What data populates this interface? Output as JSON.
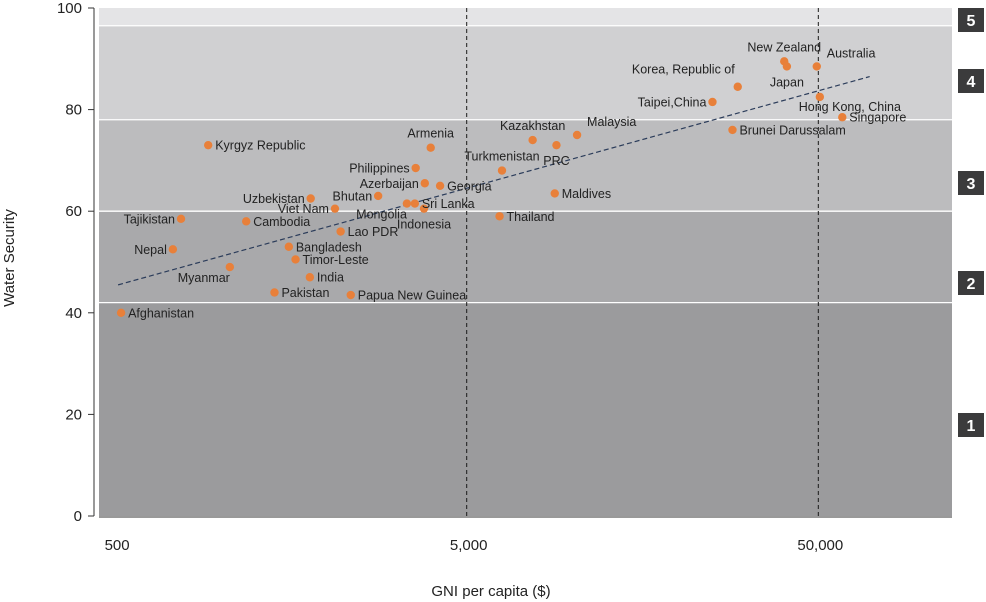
{
  "chart_data": {
    "type": "scatter",
    "title": "",
    "xlabel": "GNI per capita ($)",
    "ylabel": "Water Security",
    "x_scale": "log",
    "xlim": [
      450,
      120000
    ],
    "ylim": [
      0,
      100
    ],
    "x_ticks": [
      {
        "value": 500,
        "label": "500"
      },
      {
        "value": 5000,
        "label": "5,000"
      },
      {
        "value": 50000,
        "label": "50,000"
      }
    ],
    "y_ticks": [
      {
        "value": 0,
        "label": "0"
      },
      {
        "value": 20,
        "label": "20"
      },
      {
        "value": 40,
        "label": "40"
      },
      {
        "value": 60,
        "label": "60"
      },
      {
        "value": 80,
        "label": "80"
      },
      {
        "value": 100,
        "label": "100"
      }
    ],
    "vlines": [
      5000,
      50000
    ],
    "bands": [
      {
        "label": "1",
        "from": 0,
        "to": 42,
        "color": "#9b9b9d"
      },
      {
        "label": "2",
        "from": 42,
        "to": 60,
        "color": "#a9a9ab"
      },
      {
        "label": "3",
        "from": 60,
        "to": 78,
        "color": "#bcbcbe"
      },
      {
        "label": "4",
        "from": 78,
        "to": 96.5,
        "color": "#d0d0d2"
      },
      {
        "label": "5",
        "from": 96.5,
        "to": 100,
        "color": "#e4e4e6"
      }
    ],
    "band_marker_color": "#3b3b3c",
    "point_color": "#e8803a",
    "trend_line": {
      "x": [
        510,
        70000
      ],
      "y": [
        45.5,
        86.5
      ]
    },
    "points": [
      {
        "label": "Afghanistan",
        "x": 520,
        "y": 40,
        "anchor": "right"
      },
      {
        "label": "Nepal",
        "x": 730,
        "y": 52.5,
        "anchor": "left"
      },
      {
        "label": "Tajikistan",
        "x": 770,
        "y": 58.5,
        "anchor": "left"
      },
      {
        "label": "Kyrgyz Republic",
        "x": 920,
        "y": 73,
        "anchor": "right"
      },
      {
        "label": "Myanmar",
        "x": 1060,
        "y": 49,
        "anchor": "below-left"
      },
      {
        "label": "Cambodia",
        "x": 1180,
        "y": 58,
        "anchor": "right"
      },
      {
        "label": "Pakistan",
        "x": 1420,
        "y": 44,
        "anchor": "right"
      },
      {
        "label": "Bangladesh",
        "x": 1560,
        "y": 53,
        "anchor": "right"
      },
      {
        "label": "Timor-Leste",
        "x": 1630,
        "y": 50.5,
        "anchor": "right"
      },
      {
        "label": "India",
        "x": 1790,
        "y": 47,
        "anchor": "right"
      },
      {
        "label": "Uzbekistan",
        "x": 1800,
        "y": 62.5,
        "anchor": "left"
      },
      {
        "label": "Viet Nam",
        "x": 2110,
        "y": 60.5,
        "anchor": "left"
      },
      {
        "label": "Lao PDR",
        "x": 2190,
        "y": 56,
        "anchor": "right"
      },
      {
        "label": "Papua New Guinea",
        "x": 2340,
        "y": 43.5,
        "anchor": "right"
      },
      {
        "label": "Bhutan",
        "x": 2800,
        "y": 63,
        "anchor": "left"
      },
      {
        "label": "Mongolia",
        "x": 3380,
        "y": 61.5,
        "anchor": "below-left"
      },
      {
        "label": "Sri Lanka",
        "x": 3560,
        "y": 61.5,
        "anchor": "right"
      },
      {
        "label": "Philippines",
        "x": 3580,
        "y": 68.5,
        "anchor": "left"
      },
      {
        "label": "Indonesia",
        "x": 3780,
        "y": 60.5,
        "anchor": "below"
      },
      {
        "label": "Azerbaijan",
        "x": 3800,
        "y": 65.5,
        "anchor": "left"
      },
      {
        "label": "Armenia",
        "x": 3950,
        "y": 72.5,
        "anchor": "above"
      },
      {
        "label": "Georgia",
        "x": 4200,
        "y": 65,
        "anchor": "right"
      },
      {
        "label": "Turkmenistan",
        "x": 6300,
        "y": 68,
        "anchor": "above"
      },
      {
        "label": "Thailand",
        "x": 6200,
        "y": 59,
        "anchor": "right"
      },
      {
        "label": "Kazakhstan",
        "x": 7700,
        "y": 74,
        "anchor": "above"
      },
      {
        "label": "Maldives",
        "x": 8900,
        "y": 63.5,
        "anchor": "right"
      },
      {
        "label": "PRC",
        "x": 9000,
        "y": 73,
        "anchor": "below"
      },
      {
        "label": "Malaysia",
        "x": 10300,
        "y": 75,
        "anchor": "above-right"
      },
      {
        "label": "Taipei,China",
        "x": 25000,
        "y": 81.5,
        "anchor": "left"
      },
      {
        "label": "Brunei Darussalam",
        "x": 28500,
        "y": 76,
        "anchor": "right"
      },
      {
        "label": "Korea, Republic of",
        "x": 29500,
        "y": 84.5,
        "anchor": "left-up"
      },
      {
        "label": "New Zealand",
        "x": 40000,
        "y": 89.5,
        "anchor": "above"
      },
      {
        "label": "Japan",
        "x": 40700,
        "y": 88.5,
        "anchor": "below"
      },
      {
        "label": "Australia",
        "x": 49500,
        "y": 88.5,
        "anchor": "above-right"
      },
      {
        "label": "Hong Kong, China",
        "x": 50500,
        "y": 82.5,
        "anchor": "below-right"
      },
      {
        "label": "Singapore",
        "x": 58500,
        "y": 78.5,
        "anchor": "right"
      }
    ]
  }
}
